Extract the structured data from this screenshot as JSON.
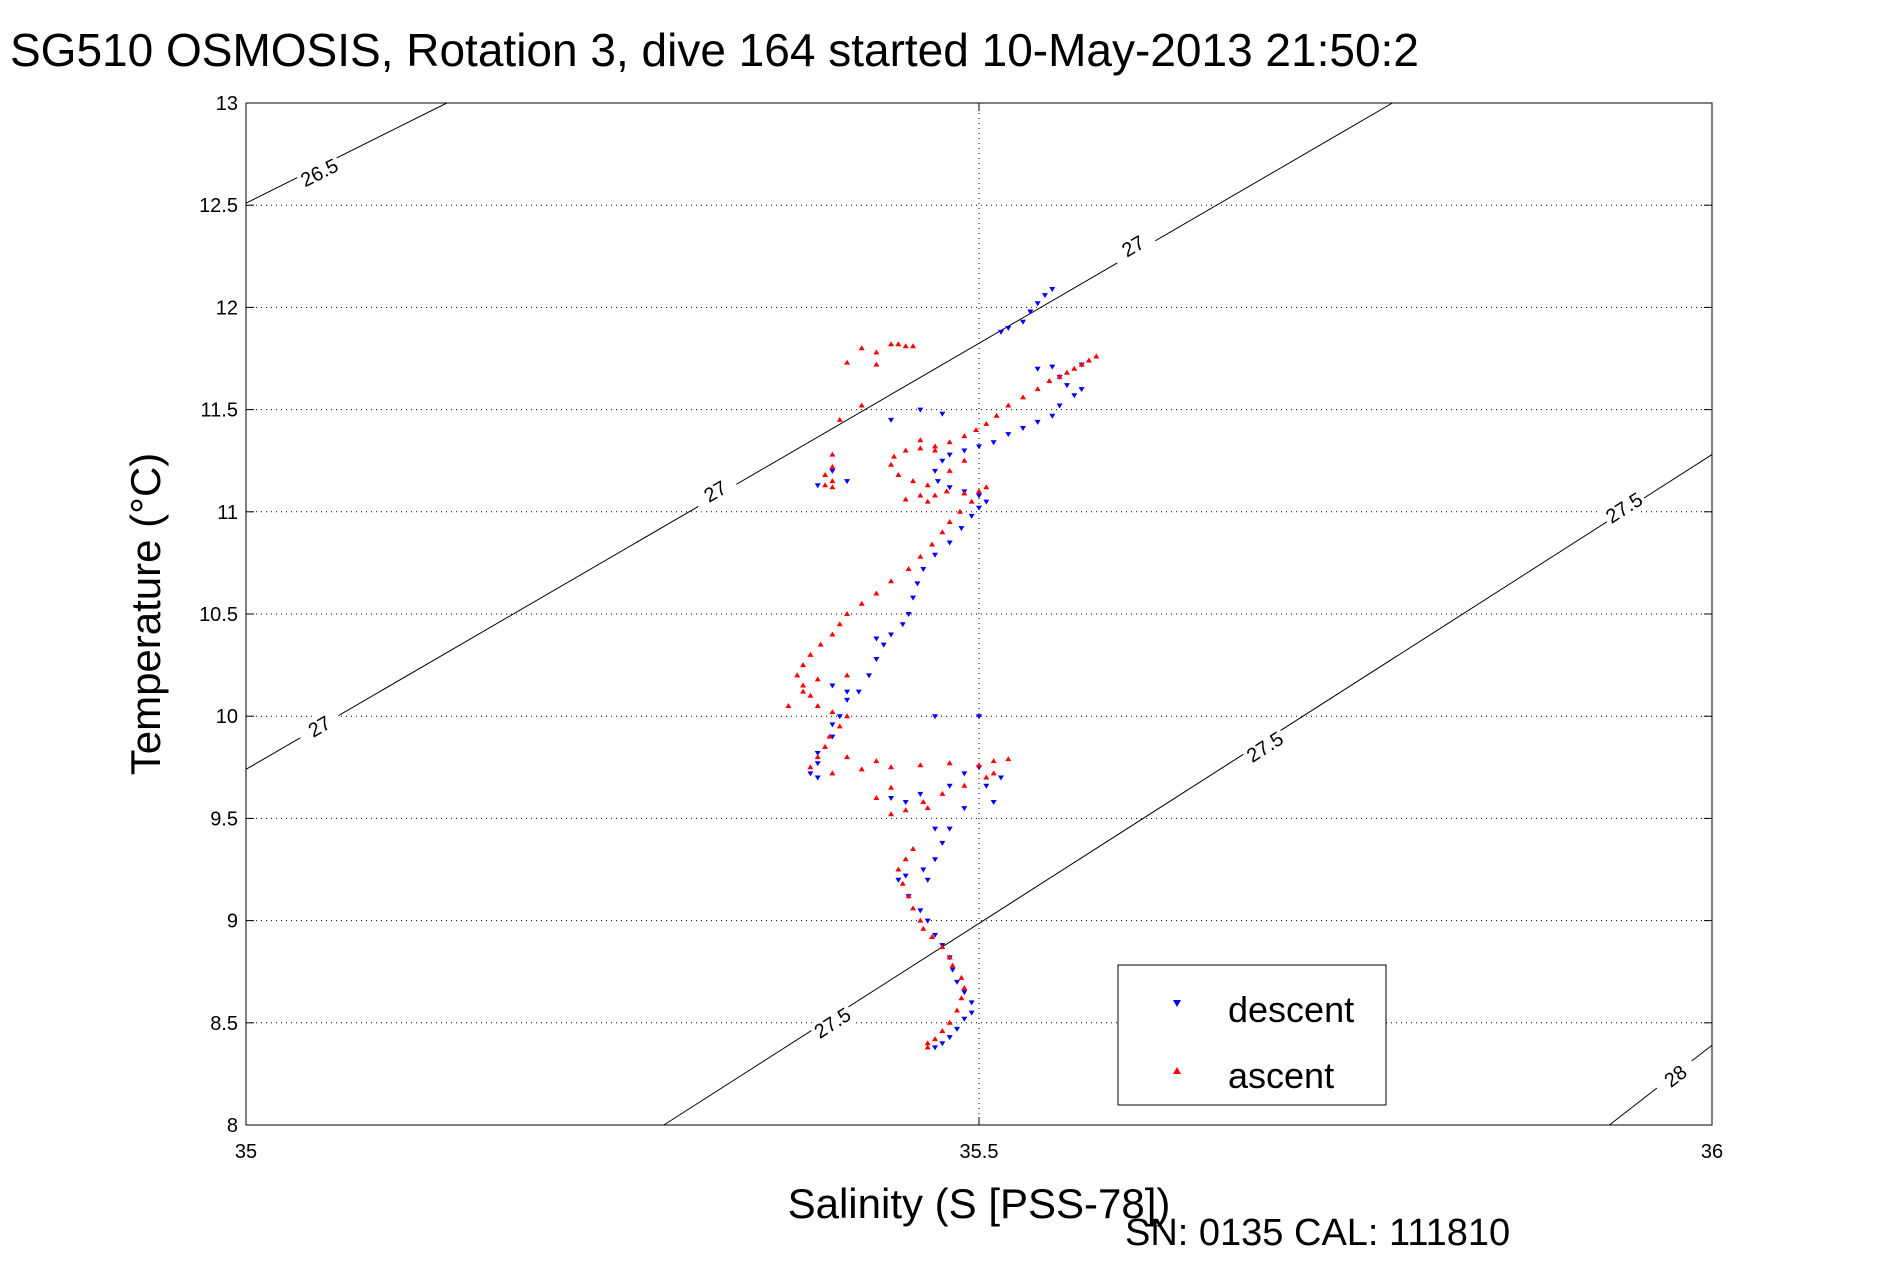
{
  "chart_data": {
    "type": "scatter",
    "title": "SG510 OSMOSIS, Rotation 3, dive 164 started 10-May-2013 21:50:2",
    "xlabel": "Salinity (S [PSS-78])",
    "ylabel": "Temperature (°C)",
    "footer": "SN: 0135  CAL: 111810",
    "xlim": [
      35,
      36
    ],
    "ylim": [
      8,
      13
    ],
    "xticks": [
      {
        "value": 35,
        "label": "35"
      },
      {
        "value": 35.5,
        "label": "35.5"
      },
      {
        "value": 36,
        "label": "36"
      }
    ],
    "yticks": [
      {
        "value": 8,
        "label": "8"
      },
      {
        "value": 8.5,
        "label": "8.5"
      },
      {
        "value": 9,
        "label": "9"
      },
      {
        "value": 9.5,
        "label": "9.5"
      },
      {
        "value": 10,
        "label": "10"
      },
      {
        "value": 10.5,
        "label": "10.5"
      },
      {
        "value": 11,
        "label": "11"
      },
      {
        "value": 11.5,
        "label": "11.5"
      },
      {
        "value": 12,
        "label": "12"
      },
      {
        "value": 12.5,
        "label": "12.5"
      },
      {
        "value": 13,
        "label": "13"
      }
    ],
    "grid": true,
    "legend_position": "bottom-right",
    "isopycnals": [
      {
        "label": "26.5",
        "points": [
          [
            35,
            12.51
          ],
          [
            35.137,
            13
          ]
        ],
        "labels_at": [
          [
            35.05,
            12.66
          ]
        ]
      },
      {
        "label": "27",
        "points": [
          [
            35,
            9.74
          ],
          [
            35.782,
            13
          ]
        ],
        "labels_at": [
          [
            35.05,
            9.95
          ],
          [
            35.32,
            11.1
          ],
          [
            35.605,
            12.3
          ]
        ]
      },
      {
        "label": "27.5",
        "points": [
          [
            35.285,
            8
          ],
          [
            36,
            11.28
          ]
        ],
        "labels_at": [
          [
            35.4,
            8.5
          ],
          [
            35.695,
            9.85
          ],
          [
            35.94,
            11.02
          ]
        ]
      },
      {
        "label": "28",
        "points": [
          [
            35.93,
            8
          ],
          [
            36,
            8.39
          ]
        ],
        "labels_at": [
          [
            35.975,
            8.24
          ]
        ]
      }
    ],
    "series": [
      {
        "name": "descent",
        "color": "#0000ff",
        "marker": "triangle-down",
        "points": [
          [
            35.55,
            12.09
          ],
          [
            35.545,
            12.06
          ],
          [
            35.54,
            12.02
          ],
          [
            35.535,
            11.98
          ],
          [
            35.53,
            11.93
          ],
          [
            35.52,
            11.9
          ],
          [
            35.515,
            11.88
          ],
          [
            35.57,
            11.72
          ],
          [
            35.55,
            11.71
          ],
          [
            35.54,
            11.7
          ],
          [
            35.555,
            11.66
          ],
          [
            35.56,
            11.62
          ],
          [
            35.57,
            11.6
          ],
          [
            35.565,
            11.57
          ],
          [
            35.555,
            11.52
          ],
          [
            35.55,
            11.47
          ],
          [
            35.54,
            11.44
          ],
          [
            35.53,
            11.41
          ],
          [
            35.52,
            11.38
          ],
          [
            35.51,
            11.34
          ],
          [
            35.5,
            11.32
          ],
          [
            35.49,
            11.3
          ],
          [
            35.48,
            11.28
          ],
          [
            35.475,
            11.25
          ],
          [
            35.47,
            11.2
          ],
          [
            35.472,
            11.15
          ],
          [
            35.48,
            11.12
          ],
          [
            35.49,
            11.1
          ],
          [
            35.5,
            11.08
          ],
          [
            35.505,
            11.05
          ],
          [
            35.5,
            11.02
          ],
          [
            35.495,
            10.98
          ],
          [
            35.488,
            10.92
          ],
          [
            35.48,
            10.85
          ],
          [
            35.47,
            10.79
          ],
          [
            35.462,
            10.72
          ],
          [
            35.458,
            10.65
          ],
          [
            35.455,
            10.58
          ],
          [
            35.452,
            10.5
          ],
          [
            35.448,
            10.45
          ],
          [
            35.44,
            10.4
          ],
          [
            35.435,
            10.35
          ],
          [
            35.43,
            10.28
          ],
          [
            35.425,
            10.2
          ],
          [
            35.418,
            10.12
          ],
          [
            35.41,
            10.08
          ],
          [
            35.405,
            10.0
          ],
          [
            35.4,
            9.96
          ],
          [
            35.4,
            9.9
          ],
          [
            35.39,
            9.82
          ],
          [
            35.39,
            9.77
          ],
          [
            35.385,
            9.72
          ],
          [
            35.39,
            9.7
          ],
          [
            35.44,
            9.6
          ],
          [
            35.45,
            9.58
          ],
          [
            35.46,
            9.62
          ],
          [
            35.48,
            9.66
          ],
          [
            35.49,
            9.72
          ],
          [
            35.5,
            9.75
          ],
          [
            35.505,
            9.66
          ],
          [
            35.51,
            9.58
          ],
          [
            35.49,
            9.55
          ],
          [
            35.48,
            9.45
          ],
          [
            35.475,
            9.38
          ],
          [
            35.47,
            9.3
          ],
          [
            35.462,
            9.25
          ],
          [
            35.45,
            9.22
          ],
          [
            35.445,
            9.2
          ],
          [
            35.452,
            9.12
          ],
          [
            35.46,
            9.05
          ],
          [
            35.465,
            9.0
          ],
          [
            35.47,
            8.93
          ],
          [
            35.475,
            8.88
          ],
          [
            35.48,
            8.82
          ],
          [
            35.482,
            8.76
          ],
          [
            35.485,
            8.7
          ],
          [
            35.49,
            8.65
          ],
          [
            35.495,
            8.6
          ],
          [
            35.495,
            8.55
          ],
          [
            35.49,
            8.52
          ],
          [
            35.485,
            8.47
          ],
          [
            35.48,
            8.43
          ],
          [
            35.475,
            8.4
          ],
          [
            35.47,
            8.38
          ],
          [
            35.4,
            11.2
          ],
          [
            35.41,
            11.15
          ],
          [
            35.39,
            11.13
          ],
          [
            35.46,
            11.5
          ],
          [
            35.44,
            11.45
          ],
          [
            35.475,
            11.48
          ],
          [
            35.43,
            10.38
          ],
          [
            35.5,
            10.0
          ],
          [
            35.47,
            10.0
          ],
          [
            35.515,
            9.7
          ],
          [
            35.47,
            9.45
          ],
          [
            35.465,
            9.2
          ],
          [
            35.4,
            10.15
          ],
          [
            35.41,
            10.12
          ]
        ]
      },
      {
        "name": "ascent",
        "color": "#ff0000",
        "marker": "triangle-up",
        "points": [
          [
            35.58,
            11.76
          ],
          [
            35.575,
            11.74
          ],
          [
            35.57,
            11.72
          ],
          [
            35.565,
            11.7
          ],
          [
            35.56,
            11.68
          ],
          [
            35.555,
            11.66
          ],
          [
            35.548,
            11.64
          ],
          [
            35.54,
            11.6
          ],
          [
            35.53,
            11.56
          ],
          [
            35.52,
            11.52
          ],
          [
            35.512,
            11.47
          ],
          [
            35.505,
            11.43
          ],
          [
            35.498,
            11.4
          ],
          [
            35.49,
            11.37
          ],
          [
            35.48,
            11.34
          ],
          [
            35.47,
            11.32
          ],
          [
            35.46,
            11.31
          ],
          [
            35.45,
            11.3
          ],
          [
            35.442,
            11.27
          ],
          [
            35.44,
            11.23
          ],
          [
            35.445,
            11.18
          ],
          [
            35.455,
            11.15
          ],
          [
            35.465,
            11.13
          ],
          [
            35.478,
            11.1
          ],
          [
            35.49,
            11.09
          ],
          [
            35.5,
            11.1
          ],
          [
            35.505,
            11.12
          ],
          [
            35.495,
            11.05
          ],
          [
            35.487,
            11.0
          ],
          [
            35.48,
            10.95
          ],
          [
            35.475,
            10.9
          ],
          [
            35.468,
            10.84
          ],
          [
            35.46,
            10.78
          ],
          [
            35.452,
            10.72
          ],
          [
            35.44,
            10.66
          ],
          [
            35.43,
            10.6
          ],
          [
            35.42,
            10.55
          ],
          [
            35.41,
            10.5
          ],
          [
            35.405,
            10.45
          ],
          [
            35.4,
            10.4
          ],
          [
            35.392,
            10.35
          ],
          [
            35.385,
            10.3
          ],
          [
            35.38,
            10.25
          ],
          [
            35.376,
            10.2
          ],
          [
            35.38,
            10.15
          ],
          [
            35.385,
            10.1
          ],
          [
            35.39,
            10.05
          ],
          [
            35.4,
            10.02
          ],
          [
            35.41,
            10.0
          ],
          [
            35.405,
            9.95
          ],
          [
            35.398,
            9.9
          ],
          [
            35.395,
            9.85
          ],
          [
            35.39,
            9.8
          ],
          [
            35.385,
            9.75
          ],
          [
            35.4,
            9.72
          ],
          [
            35.42,
            9.74
          ],
          [
            35.44,
            9.75
          ],
          [
            35.46,
            9.76
          ],
          [
            35.48,
            9.77
          ],
          [
            35.5,
            9.76
          ],
          [
            35.51,
            9.78
          ],
          [
            35.52,
            9.79
          ],
          [
            35.505,
            9.7
          ],
          [
            35.49,
            9.66
          ],
          [
            35.475,
            9.62
          ],
          [
            35.462,
            9.58
          ],
          [
            35.45,
            9.54
          ],
          [
            35.44,
            9.52
          ],
          [
            35.455,
            9.35
          ],
          [
            35.45,
            9.3
          ],
          [
            35.445,
            9.25
          ],
          [
            35.448,
            9.18
          ],
          [
            35.452,
            9.12
          ],
          [
            35.455,
            9.06
          ],
          [
            35.46,
            9.0
          ],
          [
            35.462,
            8.96
          ],
          [
            35.468,
            8.92
          ],
          [
            35.475,
            8.87
          ],
          [
            35.48,
            8.82
          ],
          [
            35.482,
            8.78
          ],
          [
            35.488,
            8.72
          ],
          [
            35.49,
            8.67
          ],
          [
            35.488,
            8.62
          ],
          [
            35.485,
            8.56
          ],
          [
            35.48,
            8.5
          ],
          [
            35.475,
            8.46
          ],
          [
            35.47,
            8.42
          ],
          [
            35.465,
            8.4
          ],
          [
            35.465,
            8.38
          ],
          [
            35.44,
            11.82
          ],
          [
            35.445,
            11.82
          ],
          [
            35.45,
            11.81
          ],
          [
            35.455,
            11.81
          ],
          [
            35.42,
            11.8
          ],
          [
            35.43,
            11.78
          ],
          [
            35.41,
            11.73
          ],
          [
            35.43,
            11.72
          ],
          [
            35.42,
            11.52
          ],
          [
            35.405,
            11.45
          ],
          [
            35.4,
            11.28
          ],
          [
            35.4,
            11.22
          ],
          [
            35.395,
            11.18
          ],
          [
            35.4,
            11.15
          ],
          [
            35.395,
            11.13
          ],
          [
            35.4,
            11.12
          ],
          [
            35.46,
            11.08
          ],
          [
            35.45,
            11.06
          ],
          [
            35.465,
            11.05
          ],
          [
            35.47,
            11.08
          ],
          [
            35.48,
            11.2
          ],
          [
            35.49,
            11.25
          ],
          [
            35.47,
            11.3
          ],
          [
            35.46,
            11.35
          ],
          [
            35.41,
            10.2
          ],
          [
            35.39,
            10.18
          ],
          [
            35.38,
            10.12
          ],
          [
            35.37,
            10.05
          ],
          [
            35.43,
            9.6
          ],
          [
            35.44,
            9.65
          ],
          [
            35.465,
            9.55
          ],
          [
            35.51,
            9.72
          ],
          [
            35.43,
            9.78
          ],
          [
            35.41,
            9.8
          ]
        ]
      }
    ]
  },
  "legend": {
    "items": [
      {
        "label": "descent",
        "color": "#0000ff",
        "marker": "triangle-down"
      },
      {
        "label": "ascent",
        "color": "#ff0000",
        "marker": "triangle-up"
      }
    ]
  }
}
